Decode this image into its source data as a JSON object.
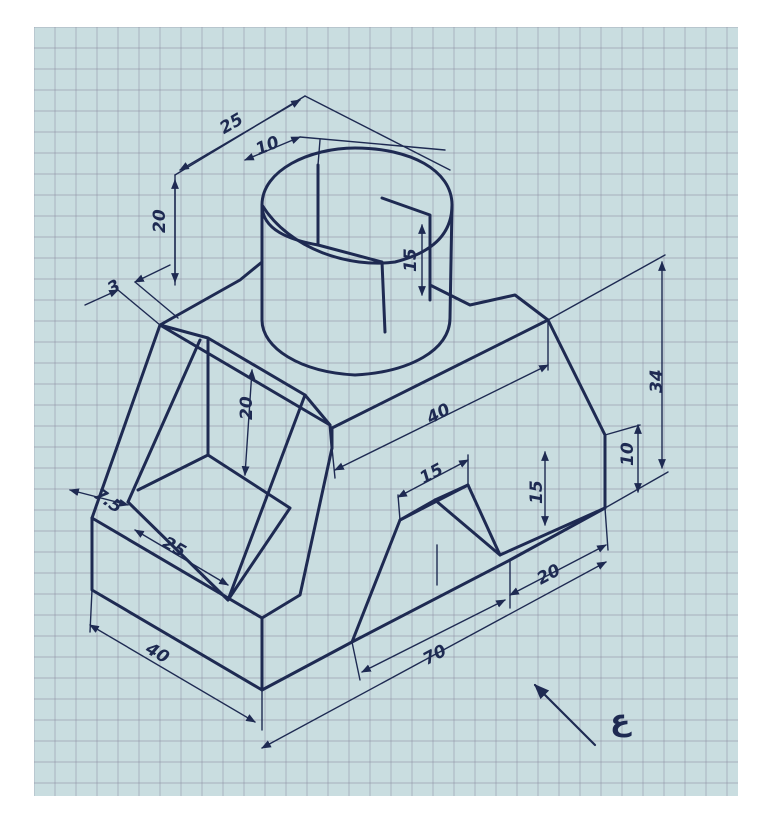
{
  "drawing": {
    "dimensions": {
      "top_width": "25",
      "slot_width": "10",
      "cylinder_height": "20",
      "slot_depth": "15",
      "wall_thickness": "3",
      "total_height": "34",
      "pocket_depth": "20",
      "top_length": "40",
      "step_height": "10",
      "notch_top": "15",
      "notch_height": "15",
      "right_step": "20",
      "front_edge": "7.5",
      "pocket_width": "25",
      "base_width": "40",
      "base_length": "70"
    },
    "signature": "ع"
  },
  "colors": {
    "paper": "#c9dde0",
    "ink": "#1e2a52",
    "grid": "#8a8aa0"
  }
}
